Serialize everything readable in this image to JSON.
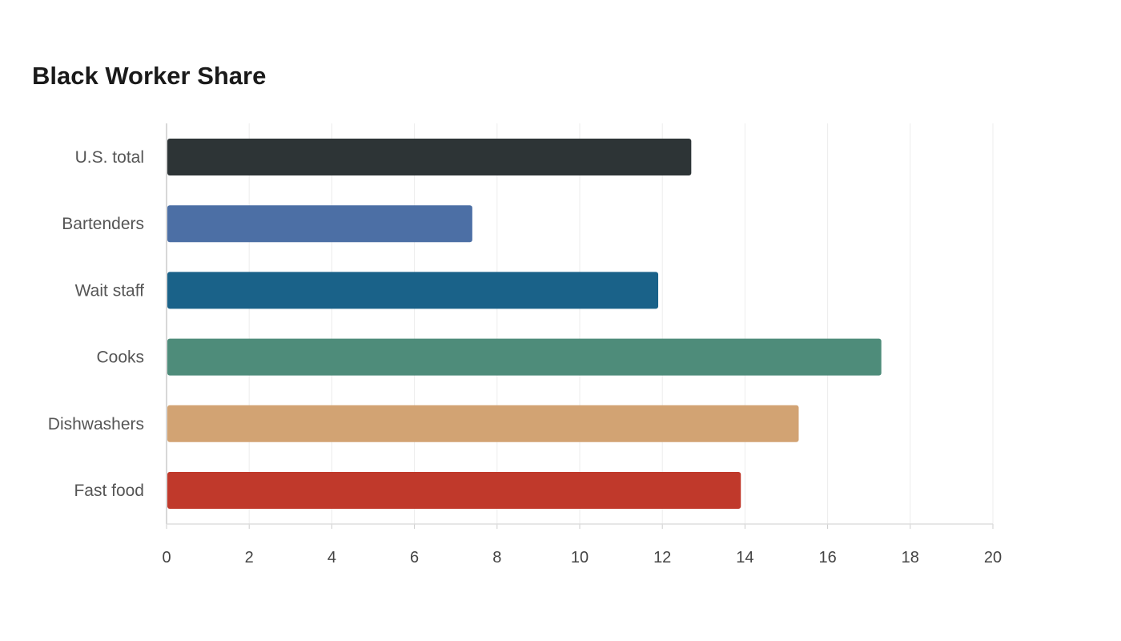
{
  "chart_data": {
    "type": "bar",
    "orientation": "horizontal",
    "title": "Black Worker Share",
    "xlabel": "",
    "ylabel": "",
    "categories": [
      "U.S. total",
      "Bartenders",
      "Wait staff",
      "Cooks",
      "Dishwashers",
      "Fast food"
    ],
    "values": [
      12.7,
      7.4,
      11.9,
      17.3,
      15.3,
      13.9
    ],
    "colors": [
      "#2d3436",
      "#4c6fa5",
      "#1a6289",
      "#4e8c7a",
      "#d2a373",
      "#c0392b"
    ],
    "xlim": [
      0,
      20
    ],
    "xticks": [
      "0",
      "2",
      "4",
      "6",
      "8",
      "10",
      "12",
      "14",
      "16",
      "18",
      "20"
    ],
    "grid": "vertical",
    "legend": "none"
  }
}
